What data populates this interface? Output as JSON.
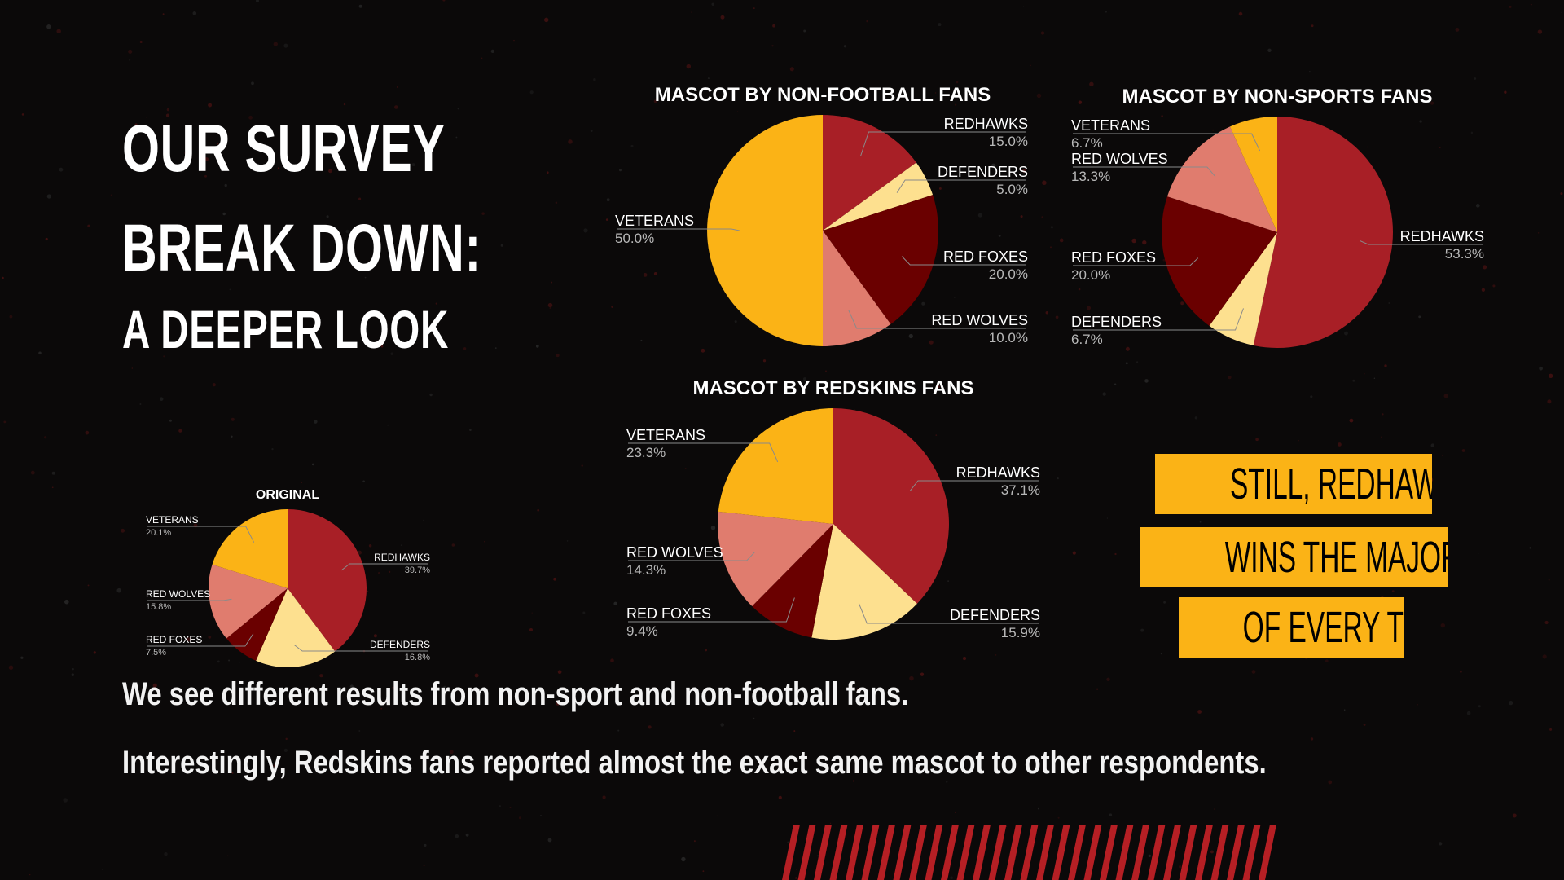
{
  "slide": {
    "title_line1": "OUR SURVEY",
    "title_line2": "BREAK DOWN:",
    "title_line3": "A DEEPER LOOK",
    "body_line1": "We see different results from non-sport and non-football fans.",
    "body_line2": "Interestingly, Redskins fans reported almost the exact same mascot to other respondents.",
    "callout_line1": "STILL, REDHAWKS",
    "callout_line2": "WINS THE MAJORITY",
    "callout_line3": "OF EVERY TIME"
  },
  "colors": {
    "background": "#0b0909",
    "accent_yellow": "#fbb316",
    "stripe_red": "#b51f24",
    "REDHAWKS": "#a81f26",
    "DEFENDERS": "#fde08f",
    "RED FOXES": "#6a0000",
    "RED WOLVES": "#e07c6e",
    "VETERANS": "#fbb316"
  },
  "chart_data": [
    {
      "type": "pie",
      "title": "MASCOT BY NON-FOOTBALL FANS",
      "categories": [
        "REDHAWKS",
        "DEFENDERS",
        "RED FOXES",
        "RED WOLVES",
        "VETERANS"
      ],
      "values": [
        15.0,
        5.0,
        20.0,
        10.0,
        50.0
      ],
      "labels": [
        "15.0%",
        "5.0%",
        "20.0%",
        "10.0%",
        "50.0%"
      ]
    },
    {
      "type": "pie",
      "title": "MASCOT BY NON-SPORTS FANS",
      "categories": [
        "REDHAWKS",
        "DEFENDERS",
        "RED FOXES",
        "RED WOLVES",
        "VETERANS"
      ],
      "values": [
        53.3,
        6.7,
        20.0,
        13.3,
        6.7
      ],
      "labels": [
        "53.3%",
        "6.7%",
        "20.0%",
        "13.3%",
        "6.7%"
      ]
    },
    {
      "type": "pie",
      "title": "MASCOT BY REDSKINS FANS",
      "categories": [
        "REDHAWKS",
        "DEFENDERS",
        "RED FOXES",
        "RED WOLVES",
        "VETERANS"
      ],
      "values": [
        37.1,
        15.9,
        9.4,
        14.3,
        23.3
      ],
      "labels": [
        "37.1%",
        "15.9%",
        "9.4%",
        "14.3%",
        "23.3%"
      ]
    },
    {
      "type": "pie",
      "title": "ORIGINAL",
      "categories": [
        "REDHAWKS",
        "DEFENDERS",
        "RED FOXES",
        "RED WOLVES",
        "VETERANS"
      ],
      "values": [
        39.7,
        16.8,
        7.5,
        15.8,
        20.1
      ],
      "labels": [
        "39.7%",
        "16.8%",
        "7.5%",
        "15.8%",
        "20.1%"
      ]
    }
  ]
}
